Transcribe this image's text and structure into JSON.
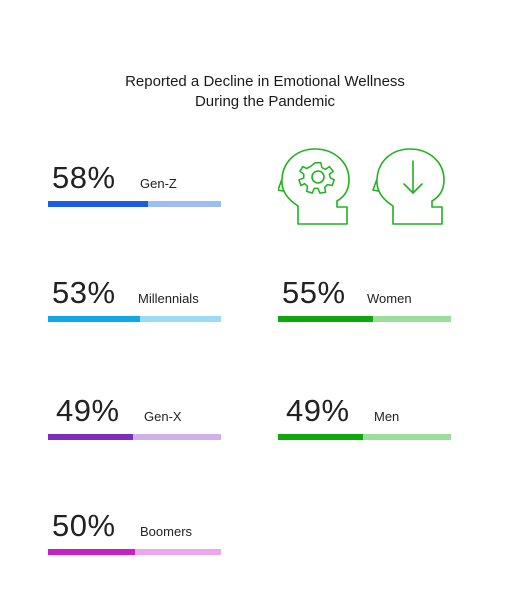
{
  "title": {
    "line1": "Reported a Decline in Emotional Wellness",
    "line2": "During the Pandemic"
  },
  "icons": {
    "left": "head-gear-icon",
    "right": "head-down-arrow-icon",
    "color": "#1fb31f"
  },
  "chart_data": {
    "type": "bar",
    "title": "Reported a Decline in Emotional Wellness During the Pandemic",
    "unit": "%",
    "max": 100,
    "series": [
      {
        "name": "Gen-Z",
        "value": 58,
        "label": "58%",
        "color": "#1a5fe0",
        "track": "#9dbdf3"
      },
      {
        "name": "Millennials",
        "value": 53,
        "label": "53%",
        "color": "#12a8e8",
        "track": "#9bdbf6"
      },
      {
        "name": "Gen-X",
        "value": 49,
        "label": "49%",
        "color": "#7b2fbf",
        "track": "#cfb0e8"
      },
      {
        "name": "Boomers",
        "value": 50,
        "label": "50%",
        "color": "#c91ec9",
        "track": "#eda6ed"
      },
      {
        "name": "Women",
        "value": 55,
        "label": "55%",
        "color": "#0ca80c",
        "track": "#9ade9a"
      },
      {
        "name": "Men",
        "value": 49,
        "label": "49%",
        "color": "#0ca80c",
        "track": "#9ade9a"
      }
    ]
  }
}
